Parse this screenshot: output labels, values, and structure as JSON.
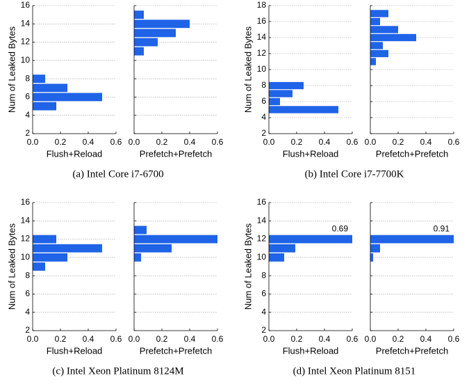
{
  "chart_data": [
    {
      "type": "barh",
      "ylabel": "Num of Leaked Bytes",
      "xlabel": "Flush+Reload",
      "caption": "(a) Intel Core i7-6700",
      "categories": [
        5,
        6,
        7,
        8
      ],
      "values": [
        0.17,
        0.5,
        0.25,
        0.09
      ],
      "color": "#1f63e6",
      "xlim": [
        0,
        0.6
      ],
      "xticks": [
        {
          "value": 0,
          "label": "0.0"
        },
        0.2,
        0.4,
        0.6
      ],
      "ylim": [
        2,
        16
      ],
      "yticks": [
        2,
        4,
        6,
        8,
        10,
        12,
        14,
        16
      ],
      "grid": true
    },
    {
      "type": "barh",
      "xlabel": "Prefetch+Prefetch",
      "categories": [
        11,
        12,
        13,
        14,
        15
      ],
      "values": [
        0.07,
        0.17,
        0.3,
        0.4,
        0.07
      ],
      "color": "#1f63e6",
      "xlim": [
        0,
        0.6
      ],
      "xticks": [
        {
          "value": 0,
          "label": "0.0"
        },
        0.2,
        0.4,
        0.6
      ],
      "ylim": [
        2,
        16
      ],
      "yticks": [
        2,
        4,
        6,
        8,
        10,
        12,
        14,
        16
      ],
      "grid": true
    },
    {
      "type": "barh",
      "ylabel": "Num of Leaked Bytes",
      "xlabel": "Flush+Reload",
      "caption": "(b) Intel Core i7-7700K",
      "categories": [
        5,
        6,
        7,
        8
      ],
      "values": [
        0.5,
        0.08,
        0.17,
        0.25
      ],
      "color": "#1f63e6",
      "xlim": [
        0,
        0.6
      ],
      "xticks": [
        {
          "value": 0,
          "label": "0.0"
        },
        0.2,
        0.4,
        0.6
      ],
      "ylim": [
        2,
        18
      ],
      "yticks": [
        2,
        4,
        6,
        8,
        10,
        12,
        14,
        16,
        18
      ],
      "grid": true
    },
    {
      "type": "barh",
      "xlabel": "Prefetch+Prefetch",
      "categories": [
        11,
        12,
        13,
        14,
        15,
        16,
        17
      ],
      "values": [
        0.04,
        0.13,
        0.09,
        0.33,
        0.2,
        0.07,
        0.13
      ],
      "color": "#1f63e6",
      "xlim": [
        0,
        0.6
      ],
      "xticks": [
        {
          "value": 0,
          "label": "0.0"
        },
        0.2,
        0.4,
        0.6
      ],
      "ylim": [
        2,
        18
      ],
      "yticks": [
        2,
        4,
        6,
        8,
        10,
        12,
        14,
        16,
        18
      ],
      "grid": true
    },
    {
      "type": "barh",
      "ylabel": "Num of Leaked Bytes",
      "xlabel": "Flush+Reload",
      "caption": "(c) Intel Xeon Platinum 8124M",
      "categories": [
        9,
        10,
        11,
        12
      ],
      "values": [
        0.09,
        0.25,
        0.5,
        0.17
      ],
      "color": "#1f63e6",
      "xlim": [
        0,
        0.6
      ],
      "xticks": [
        {
          "value": 0,
          "label": "0.0"
        },
        0.2,
        0.4,
        0.6
      ],
      "ylim": [
        2,
        16
      ],
      "yticks": [
        2,
        4,
        6,
        8,
        10,
        12,
        14,
        16
      ],
      "grid": true
    },
    {
      "type": "barh",
      "xlabel": "Prefetch+Prefetch",
      "categories": [
        10,
        11,
        12,
        13
      ],
      "values": [
        0.05,
        0.27,
        0.6,
        0.09
      ],
      "color": "#1f63e6",
      "xlim": [
        0,
        0.6
      ],
      "xticks": [
        {
          "value": 0,
          "label": "0.0"
        },
        0.2,
        0.4,
        0.6
      ],
      "ylim": [
        2,
        16
      ],
      "yticks": [
        2,
        4,
        6,
        8,
        10,
        12,
        14,
        16
      ],
      "grid": true
    },
    {
      "type": "barh",
      "ylabel": "Num of Leaked Bytes",
      "xlabel": "Flush+Reload",
      "caption": "(d) Intel Xeon Platinum 8151",
      "categories": [
        10,
        11,
        12
      ],
      "values": [
        0.11,
        0.19,
        0.69
      ],
      "value_labels": [
        null,
        null,
        "0.69"
      ],
      "color": "#1f63e6",
      "xlim": [
        0,
        0.6
      ],
      "xticks": [
        {
          "value": 0,
          "label": "0.0"
        },
        0.2,
        0.4,
        0.6
      ],
      "ylim": [
        2,
        16
      ],
      "yticks": [
        2,
        4,
        6,
        8,
        10,
        12,
        14,
        16
      ],
      "grid": true
    },
    {
      "type": "barh",
      "xlabel": "Prefetch+Prefetch",
      "categories": [
        10,
        11,
        12
      ],
      "values": [
        0.02,
        0.07,
        0.91
      ],
      "value_labels": [
        null,
        null,
        "0.91"
      ],
      "color": "#1f63e6",
      "xlim": [
        0,
        0.6
      ],
      "xticks": [
        {
          "value": 0,
          "label": "0.0"
        },
        0.2,
        0.4,
        0.6
      ],
      "ylim": [
        2,
        16
      ],
      "yticks": [
        2,
        4,
        6,
        8,
        10,
        12,
        14,
        16
      ],
      "grid": true
    }
  ]
}
